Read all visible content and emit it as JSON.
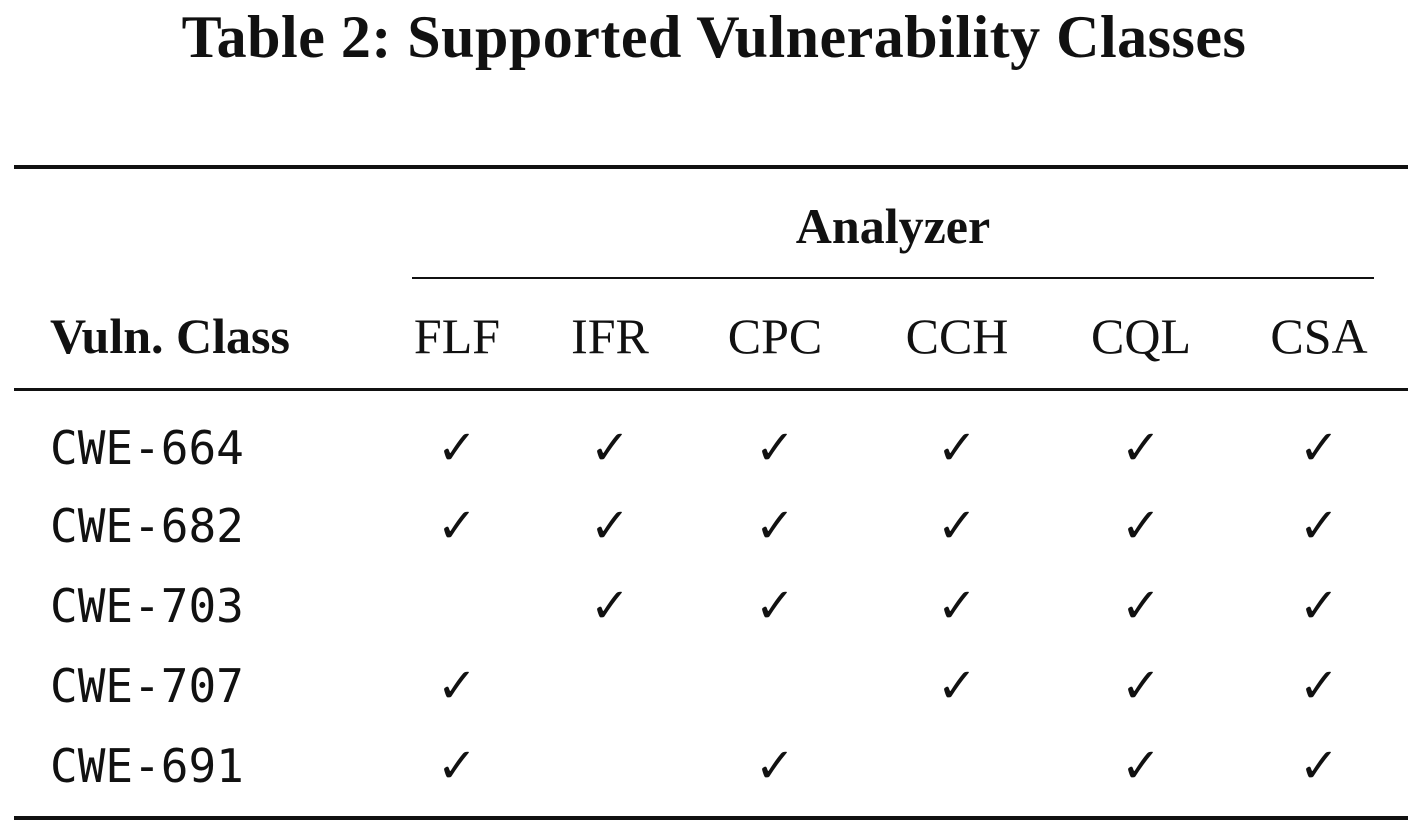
{
  "caption": "Table 2: Supported Vulnerability Classes",
  "table": {
    "group_header": "Analyzer",
    "corner_header": "Vuln. Class",
    "columns": [
      "FLF",
      "IFR",
      "CPC",
      "CCH",
      "CQL",
      "CSA"
    ],
    "check_symbol": "✓",
    "rows": [
      {
        "label": "CWE-664",
        "cells": [
          "✓",
          "✓",
          "✓",
          "✓",
          "✓",
          "✓"
        ]
      },
      {
        "label": "CWE-682",
        "cells": [
          "✓",
          "✓",
          "✓",
          "✓",
          "✓",
          "✓"
        ]
      },
      {
        "label": "CWE-703",
        "cells": [
          "",
          "✓",
          "✓",
          "✓",
          "✓",
          "✓"
        ]
      },
      {
        "label": "CWE-707",
        "cells": [
          "✓",
          "",
          "",
          "✓",
          "✓",
          "✓"
        ]
      },
      {
        "label": "CWE-691",
        "cells": [
          "✓",
          "",
          "✓",
          "",
          "✓",
          "✓"
        ]
      }
    ]
  }
}
